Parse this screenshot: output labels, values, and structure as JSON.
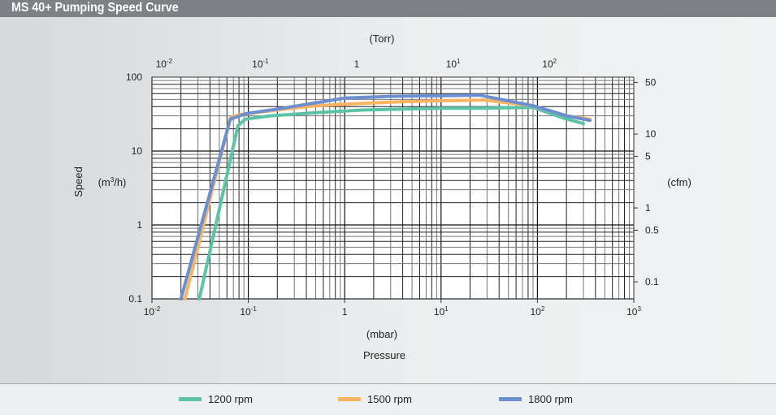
{
  "title": "MS 40+ Pumping Speed Curve",
  "chart_data": {
    "type": "line",
    "title": "MS 40+ Pumping Speed Curve",
    "xscale": "log",
    "yscale": "log",
    "xlim": [
      0.01,
      1000
    ],
    "ylim": [
      0.1,
      100
    ],
    "xlabel": "Pressure",
    "xunit": "(mbar)",
    "ylabel": "Speed",
    "yunit": "(m3/h)",
    "top_axis_label": "(Torr)",
    "right_axis_label": "(cfm)",
    "x_ticks": [
      {
        "base": "10",
        "exp": "-2"
      },
      {
        "base": "10",
        "exp": "-1"
      },
      {
        "base": "1",
        "exp": ""
      },
      {
        "base": "10",
        "exp": "1"
      },
      {
        "base": "10",
        "exp": "2"
      },
      {
        "base": "10",
        "exp": "3"
      }
    ],
    "top_ticks": [
      {
        "base": "10",
        "exp": "-2",
        "v": 0.01
      },
      {
        "base": "10",
        "exp": "-1",
        "v": 0.1
      },
      {
        "base": "1",
        "exp": "",
        "v": 1
      },
      {
        "base": "10",
        "exp": "1",
        "v": 10
      },
      {
        "base": "10",
        "exp": "2",
        "v": 100
      }
    ],
    "y_ticks": [
      "100",
      "10",
      "1",
      "0.1"
    ],
    "right_ticks": [
      {
        "label": "50",
        "v": 50
      },
      {
        "label": "10",
        "v": 10
      },
      {
        "label": "5",
        "v": 5
      },
      {
        "label": "1",
        "v": 1
      },
      {
        "label": "0.5",
        "v": 0.5
      },
      {
        "label": "0.1",
        "v": 0.1
      }
    ],
    "grid": true,
    "series": [
      {
        "name": "1200 rpm",
        "color": "#5cc4a6",
        "points": [
          [
            0.031,
            0.1
          ],
          [
            0.078,
            22
          ],
          [
            0.093,
            27
          ],
          [
            0.17,
            30
          ],
          [
            0.5,
            33
          ],
          [
            1.6,
            36
          ],
          [
            10,
            38
          ],
          [
            30,
            38
          ],
          [
            90,
            39
          ],
          [
            185,
            28
          ],
          [
            300,
            23.5
          ]
        ]
      },
      {
        "name": "1500 rpm",
        "color": "#fdb462",
        "points": [
          [
            0.022,
            0.1
          ],
          [
            0.065,
            28
          ],
          [
            0.08,
            31
          ],
          [
            0.2,
            36
          ],
          [
            0.5,
            41
          ],
          [
            1,
            43
          ],
          [
            3,
            46
          ],
          [
            10,
            48
          ],
          [
            28,
            49
          ],
          [
            90,
            41
          ],
          [
            200,
            30
          ],
          [
            350,
            27
          ]
        ]
      },
      {
        "name": "1800 rpm",
        "color": "#6b8fd0",
        "points": [
          [
            0.02,
            0.1
          ],
          [
            0.065,
            27
          ],
          [
            0.094,
            32
          ],
          [
            0.2,
            37
          ],
          [
            0.5,
            45
          ],
          [
            1,
            52
          ],
          [
            3,
            55
          ],
          [
            10,
            56
          ],
          [
            25,
            57
          ],
          [
            90,
            41
          ],
          [
            200,
            30
          ],
          [
            350,
            26
          ]
        ]
      }
    ]
  },
  "legend": [
    "1200 rpm",
    "1500 rpm",
    "1800 rpm"
  ]
}
